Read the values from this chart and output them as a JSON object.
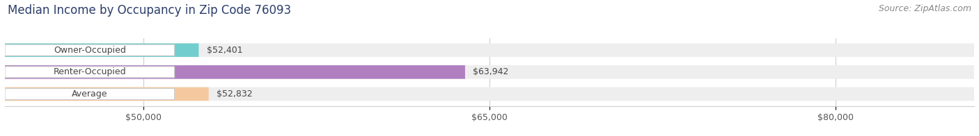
{
  "title": "Median Income by Occupancy in Zip Code 76093",
  "source": "Source: ZipAtlas.com",
  "categories": [
    "Owner-Occupied",
    "Renter-Occupied",
    "Average"
  ],
  "values": [
    52401,
    63942,
    52832
  ],
  "bar_colors": [
    "#72cece",
    "#b07fc0",
    "#f5c9a0"
  ],
  "bar_bg_color": "#efefef",
  "value_labels": [
    "$52,401",
    "$63,942",
    "$52,832"
  ],
  "x_min": 44000,
  "x_max": 86000,
  "xticks": [
    50000,
    65000,
    80000
  ],
  "xtick_labels": [
    "$50,000",
    "$65,000",
    "$80,000"
  ],
  "title_fontsize": 12,
  "source_fontsize": 9,
  "label_fontsize": 9,
  "value_fontsize": 9,
  "tick_fontsize": 9,
  "background_color": "#ffffff"
}
